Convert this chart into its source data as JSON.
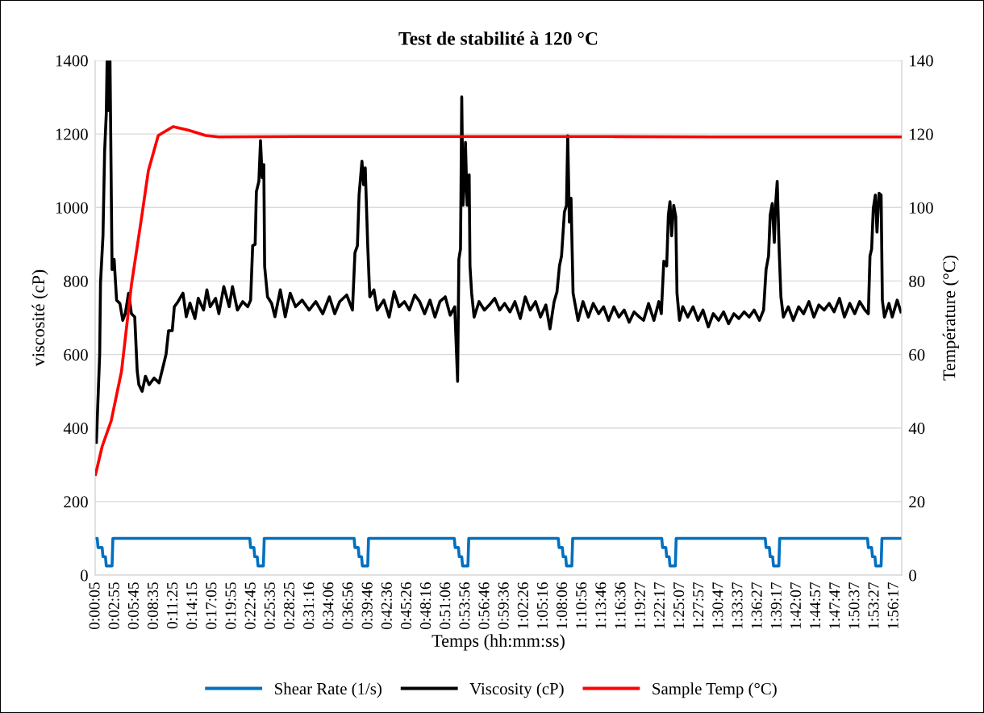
{
  "chart_data": {
    "type": "line",
    "title": "Test de stabilité à 120 °C",
    "xlabel": "Temps (hh:mm:ss)",
    "ylabel": "viscosité (cP)",
    "y2label": "Température (°C)",
    "xlim": [
      0,
      1.956
    ],
    "xticks": [
      {
        "value": 0.0014,
        "label": "0:00:05"
      },
      {
        "value": 0.0486,
        "label": "0:02:55"
      },
      {
        "value": 0.0958,
        "label": "0:05:45"
      },
      {
        "value": 0.1431,
        "label": "0:08:35"
      },
      {
        "value": 0.1903,
        "label": "0:11:25"
      },
      {
        "value": 0.2375,
        "label": "0:14:15"
      },
      {
        "value": 0.2847,
        "label": "0:17:05"
      },
      {
        "value": 0.3319,
        "label": "0:19:55"
      },
      {
        "value": 0.3792,
        "label": "0:22:45"
      },
      {
        "value": 0.4264,
        "label": "0:25:35"
      },
      {
        "value": 0.4736,
        "label": "0:28:25"
      },
      {
        "value": 0.5211,
        "label": "0:31:16"
      },
      {
        "value": 0.5683,
        "label": "0:34:06"
      },
      {
        "value": 0.6156,
        "label": "0:36:56"
      },
      {
        "value": 0.6628,
        "label": "0:39:46"
      },
      {
        "value": 0.71,
        "label": "0:42:36"
      },
      {
        "value": 0.7572,
        "label": "0:45:26"
      },
      {
        "value": 0.8044,
        "label": "0:48:16"
      },
      {
        "value": 0.8517,
        "label": "0:51:06"
      },
      {
        "value": 0.8989,
        "label": "0:53:56"
      },
      {
        "value": 0.9461,
        "label": "0:56:46"
      },
      {
        "value": 0.9933,
        "label": "0:59:36"
      },
      {
        "value": 1.0406,
        "label": "1:02:26"
      },
      {
        "value": 1.0878,
        "label": "1:05:16"
      },
      {
        "value": 1.135,
        "label": "1:08:06"
      },
      {
        "value": 1.1822,
        "label": "1:10:56"
      },
      {
        "value": 1.2294,
        "label": "1:13:46"
      },
      {
        "value": 1.2767,
        "label": "1:16:36"
      },
      {
        "value": 1.3242,
        "label": "1:19:27"
      },
      {
        "value": 1.3714,
        "label": "1:22:17"
      },
      {
        "value": 1.4186,
        "label": "1:25:07"
      },
      {
        "value": 1.4658,
        "label": "1:27:57"
      },
      {
        "value": 1.5131,
        "label": "1:30:47"
      },
      {
        "value": 1.5603,
        "label": "1:33:37"
      },
      {
        "value": 1.6075,
        "label": "1:36:27"
      },
      {
        "value": 1.6547,
        "label": "1:39:17"
      },
      {
        "value": 1.7019,
        "label": "1:42:07"
      },
      {
        "value": 1.7492,
        "label": "1:44:57"
      },
      {
        "value": 1.7964,
        "label": "1:47:47"
      },
      {
        "value": 1.8436,
        "label": "1:50:37"
      },
      {
        "value": 1.8908,
        "label": "1:53:27"
      },
      {
        "value": 1.9381,
        "label": "1:56:17"
      }
    ],
    "ylim": [
      0,
      1400
    ],
    "yticks": [
      0,
      200,
      400,
      600,
      800,
      1000,
      1200,
      1400
    ],
    "y2lim": [
      0,
      140
    ],
    "y2ticks": [
      0,
      20,
      40,
      60,
      80,
      100,
      120,
      140
    ],
    "grid": "y",
    "legend": "bottom",
    "series": [
      {
        "name": "Shear Rate (1/s)",
        "color": "#0070c0",
        "x": [
          0.001,
          0.005,
          0.007,
          0.017,
          0.019,
          0.025,
          0.027,
          0.041,
          0.043,
          0.375,
          0.377,
          0.385,
          0.387,
          0.393,
          0.395,
          0.408,
          0.41,
          0.628,
          0.63,
          0.638,
          0.64,
          0.646,
          0.648,
          0.661,
          0.663,
          0.871,
          0.873,
          0.881,
          0.883,
          0.889,
          0.891,
          0.904,
          0.906,
          1.123,
          1.125,
          1.133,
          1.135,
          1.141,
          1.143,
          1.156,
          1.158,
          1.374,
          1.376,
          1.384,
          1.386,
          1.392,
          1.394,
          1.407,
          1.409,
          1.625,
          1.627,
          1.635,
          1.637,
          1.643,
          1.645,
          1.658,
          1.66,
          1.873,
          1.875,
          1.883,
          1.885,
          1.891,
          1.893,
          1.906,
          1.908,
          1.955
        ],
        "values": [
          100,
          100,
          75,
          75,
          50,
          50,
          25,
          25,
          100,
          100,
          75,
          75,
          50,
          50,
          25,
          25,
          100,
          100,
          75,
          75,
          50,
          50,
          25,
          25,
          100,
          100,
          75,
          75,
          50,
          50,
          25,
          25,
          100,
          100,
          75,
          75,
          50,
          50,
          25,
          25,
          100,
          100,
          75,
          75,
          50,
          50,
          25,
          25,
          100,
          100,
          75,
          75,
          50,
          50,
          25,
          25,
          100,
          100,
          75,
          75,
          50,
          50,
          25,
          25,
          100,
          100
        ]
      },
      {
        "name": "Viscosity (cP)",
        "color": "#000000",
        "x": [
          0.003,
          0.011,
          0.013,
          0.019,
          0.023,
          0.027,
          0.029,
          0.033,
          0.036,
          0.041,
          0.046,
          0.052,
          0.06,
          0.067,
          0.073,
          0.081,
          0.088,
          0.096,
          0.102,
          0.106,
          0.114,
          0.122,
          0.131,
          0.143,
          0.155,
          0.164,
          0.172,
          0.178,
          0.187,
          0.192,
          0.201,
          0.213,
          0.221,
          0.23,
          0.242,
          0.25,
          0.263,
          0.271,
          0.279,
          0.292,
          0.3,
          0.312,
          0.325,
          0.333,
          0.345,
          0.358,
          0.37,
          0.377,
          0.382,
          0.388,
          0.391,
          0.397,
          0.401,
          0.405,
          0.409,
          0.411,
          0.418,
          0.428,
          0.436,
          0.449,
          0.461,
          0.473,
          0.486,
          0.502,
          0.519,
          0.535,
          0.552,
          0.568,
          0.581,
          0.593,
          0.61,
          0.624,
          0.63,
          0.636,
          0.64,
          0.647,
          0.651,
          0.655,
          0.661,
          0.666,
          0.676,
          0.684,
          0.7,
          0.713,
          0.725,
          0.737,
          0.75,
          0.762,
          0.775,
          0.787,
          0.799,
          0.812,
          0.824,
          0.836,
          0.849,
          0.861,
          0.872,
          0.879,
          0.882,
          0.886,
          0.889,
          0.892,
          0.895,
          0.898,
          0.902,
          0.907,
          0.909,
          0.913,
          0.919,
          0.931,
          0.944,
          0.956,
          0.969,
          0.981,
          0.993,
          1.006,
          1.018,
          1.031,
          1.043,
          1.055,
          1.068,
          1.08,
          1.093,
          1.103,
          1.113,
          1.12,
          1.126,
          1.131,
          1.138,
          1.143,
          1.146,
          1.15,
          1.154,
          1.159,
          1.165,
          1.171,
          1.183,
          1.196,
          1.208,
          1.221,
          1.233,
          1.245,
          1.258,
          1.27,
          1.283,
          1.295,
          1.307,
          1.32,
          1.33,
          1.342,
          1.355,
          1.367,
          1.373,
          1.379,
          1.386,
          1.39,
          1.394,
          1.398,
          1.403,
          1.408,
          1.411,
          1.417,
          1.425,
          1.437,
          1.45,
          1.462,
          1.474,
          1.487,
          1.499,
          1.512,
          1.524,
          1.536,
          1.549,
          1.561,
          1.574,
          1.586,
          1.598,
          1.611,
          1.621,
          1.627,
          1.633,
          1.637,
          1.642,
          1.647,
          1.65,
          1.654,
          1.659,
          1.663,
          1.669,
          1.681,
          1.693,
          1.706,
          1.718,
          1.731,
          1.743,
          1.755,
          1.768,
          1.78,
          1.792,
          1.805,
          1.817,
          1.83,
          1.842,
          1.854,
          1.867,
          1.875,
          1.879,
          1.883,
          1.887,
          1.892,
          1.896,
          1.901,
          1.906,
          1.909,
          1.914,
          1.925,
          1.933,
          1.945,
          1.954
        ],
        "values": [
          361,
          601,
          795,
          923,
          1154,
          1255,
          1400,
          1264,
          1400,
          831,
          859,
          748,
          739,
          693,
          711,
          767,
          711,
          702,
          555,
          518,
          500,
          541,
          518,
          536,
          523,
          564,
          601,
          665,
          665,
          730,
          744,
          767,
          703,
          740,
          698,
          753,
          721,
          776,
          730,
          753,
          711,
          785,
          730,
          785,
          721,
          744,
          730,
          748,
          896,
          900,
          1043,
          1071,
          1182,
          1081,
          1117,
          840,
          757,
          739,
          703,
          776,
          703,
          767,
          730,
          748,
          721,
          744,
          711,
          757,
          711,
          744,
          762,
          721,
          877,
          896,
          1034,
          1126,
          1062,
          1108,
          896,
          757,
          776,
          721,
          748,
          702,
          771,
          730,
          744,
          721,
          762,
          744,
          711,
          748,
          702,
          744,
          757,
          707,
          730,
          527,
          859,
          887,
          1301,
          1006,
          1062,
          1177,
          1006,
          1089,
          841,
          767,
          702,
          744,
          721,
          735,
          753,
          721,
          739,
          716,
          744,
          698,
          757,
          721,
          744,
          702,
          735,
          670,
          744,
          771,
          841,
          868,
          988,
          1006,
          1195,
          960,
          1025,
          767,
          730,
          693,
          744,
          702,
          739,
          711,
          730,
          693,
          730,
          702,
          721,
          688,
          716,
          702,
          693,
          739,
          693,
          744,
          711,
          854,
          841,
          979,
          1016,
          923,
          1006,
          975,
          767,
          693,
          730,
          702,
          730,
          693,
          721,
          675,
          711,
          693,
          716,
          684,
          711,
          698,
          716,
          702,
          721,
          693,
          721,
          831,
          868,
          979,
          1011,
          905,
          1006,
          1071,
          877,
          757,
          702,
          730,
          693,
          730,
          711,
          744,
          702,
          735,
          721,
          739,
          716,
          753,
          702,
          739,
          711,
          744,
          721,
          711,
          868,
          887,
          997,
          1034,
          933,
          1039,
          1034,
          748,
          702,
          739,
          702,
          748,
          716
        ]
      },
      {
        "name": "Sample Temp (°C)",
        "color": "#ff0000",
        "axis": "y2",
        "x": [
          0.001,
          0.017,
          0.039,
          0.064,
          0.088,
          0.113,
          0.129,
          0.153,
          0.189,
          0.227,
          0.268,
          0.299,
          0.5,
          0.75,
          1.0,
          1.25,
          1.5,
          1.75,
          1.955
        ],
        "values": [
          27.4,
          35,
          42,
          55.5,
          79,
          97.6,
          110,
          119.6,
          122,
          121,
          119.6,
          119.2,
          119.3,
          119.3,
          119.3,
          119.3,
          119.2,
          119.2,
          119.2
        ]
      }
    ]
  }
}
